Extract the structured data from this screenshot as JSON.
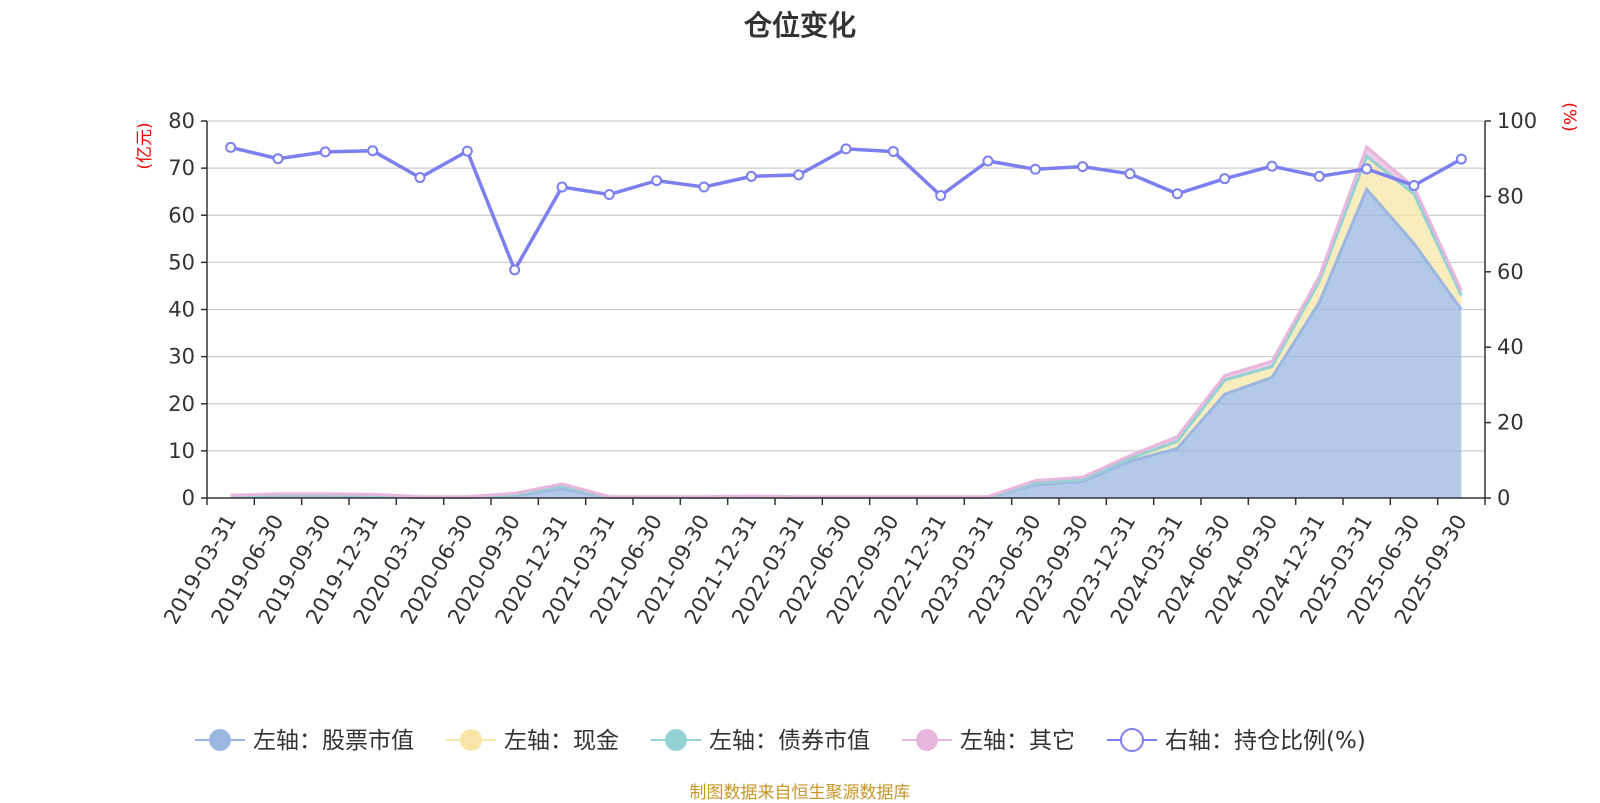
{
  "title": "仓位变化",
  "source_note": "制图数据来自恒生聚源数据库",
  "chart_data": {
    "type": "area",
    "title": "仓位变化",
    "left_axis": {
      "unit": "(亿元)",
      "range": [
        0,
        80
      ],
      "ticks": [
        0,
        10,
        20,
        30,
        40,
        50,
        60,
        70,
        80
      ]
    },
    "right_axis": {
      "unit": "(%)",
      "range": [
        0,
        100
      ],
      "ticks": [
        0,
        20,
        40,
        60,
        80,
        100
      ]
    },
    "grid": true,
    "legend_position": "bottom",
    "categories": [
      "2019-03-31",
      "2019-06-30",
      "2019-09-30",
      "2019-12-31",
      "2020-03-31",
      "2020-06-30",
      "2020-09-30",
      "2020-12-31",
      "2021-03-31",
      "2021-06-30",
      "2021-09-30",
      "2021-12-31",
      "2022-03-31",
      "2022-06-30",
      "2022-09-30",
      "2022-12-31",
      "2023-03-31",
      "2023-06-30",
      "2023-09-30",
      "2023-12-31",
      "2024-03-31",
      "2024-06-30",
      "2024-09-30",
      "2024-12-31",
      "2025-03-31",
      "2025-06-30",
      "2025-09-30"
    ],
    "series": [
      {
        "name": "左轴：股票市值",
        "axis": "left",
        "color": "#9bb6e0",
        "values": [
          0.3,
          0.5,
          0.5,
          0.4,
          0.1,
          0.1,
          0.5,
          2.0,
          0.1,
          0.1,
          0.1,
          0.2,
          0.1,
          0.1,
          0.1,
          0.1,
          0.1,
          2.8,
          3.5,
          7.8,
          10.5,
          22.0,
          25.6,
          41.5,
          65.5,
          54.0,
          40.0
        ]
      },
      {
        "name": "左轴：现金",
        "axis": "left",
        "color": "#f7e6a7",
        "values": [
          0.1,
          0.2,
          0.2,
          0.2,
          0.1,
          0.1,
          0.2,
          0.5,
          0.1,
          0.1,
          0.1,
          0.1,
          0.1,
          0.1,
          0.1,
          0.1,
          0.1,
          0.4,
          0.4,
          0.6,
          1.5,
          3.0,
          2.3,
          4.5,
          7.0,
          10.5,
          3.0
        ]
      },
      {
        "name": "左轴：债券市值",
        "axis": "left",
        "color": "#93d2d4",
        "values": [
          0,
          0,
          0,
          0,
          0,
          0,
          0,
          0,
          0,
          0,
          0,
          0,
          0,
          0,
          0,
          0,
          0,
          0,
          0,
          0,
          0,
          0,
          0,
          0,
          0,
          0,
          0
        ]
      },
      {
        "name": "左轴：其它",
        "axis": "left",
        "color": "#e8b6dc",
        "values": [
          0.2,
          0.2,
          0.2,
          0.2,
          0.1,
          0.1,
          0.3,
          0.5,
          0.1,
          0.1,
          0.1,
          0.1,
          0.1,
          0.1,
          0.1,
          0.1,
          0.1,
          0.5,
          0.5,
          0.6,
          1.0,
          1.0,
          1.1,
          1.0,
          2.0,
          1.5,
          1.0
        ]
      },
      {
        "name": "右轴：持仓比例(%)",
        "axis": "right",
        "type": "line",
        "color": "#7b7ff0",
        "values": [
          93,
          90,
          91.8,
          92.1,
          85,
          92,
          60.5,
          82.5,
          80.5,
          84.2,
          82.5,
          85.3,
          85.7,
          92.6,
          91.9,
          80.2,
          89.4,
          87.2,
          87.9,
          86,
          80.7,
          84.7,
          88,
          85.3,
          87.3,
          82.9,
          89.9
        ]
      }
    ]
  }
}
